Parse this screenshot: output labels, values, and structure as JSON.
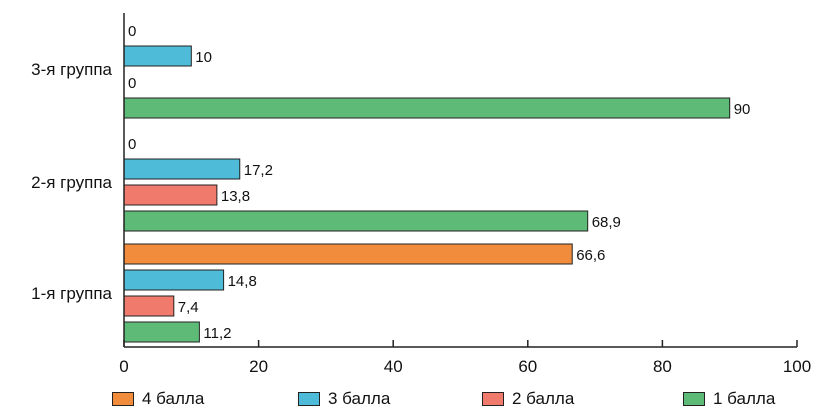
{
  "chart_data": {
    "type": "bar",
    "orientation": "horizontal",
    "categories": [
      "1-я группа",
      "2-я группа",
      "3-я группа"
    ],
    "series": [
      {
        "name": "1 балла",
        "color": "#5dbb77",
        "values": [
          11.2,
          68.9,
          90
        ]
      },
      {
        "name": "2 балла",
        "color": "#f07b6c",
        "values": [
          7.4,
          13.8,
          0
        ]
      },
      {
        "name": "3 балла",
        "color": "#4ebcd8",
        "values": [
          14.8,
          17.2,
          10
        ]
      },
      {
        "name": "4 балла",
        "color": "#f18c3c",
        "values": [
          66.6,
          0,
          0
        ]
      }
    ],
    "value_labels": [
      [
        "11,2",
        "68,9",
        "90"
      ],
      [
        "7,4",
        "13,8",
        "0"
      ],
      [
        "14,8",
        "17,2",
        "10"
      ],
      [
        "66,6",
        "0",
        "0"
      ]
    ],
    "xlim": [
      0,
      100
    ],
    "xticks": [
      0,
      20,
      40,
      60,
      80,
      100
    ],
    "xtick_labels": [
      "0",
      "20",
      "40",
      "60",
      "80",
      "100"
    ],
    "title": "",
    "xlabel": "",
    "ylabel": "",
    "grid": false,
    "legend_position": "bottom",
    "legend_order": [
      "4 балла",
      "3 балла",
      "2 балла",
      "1 балла"
    ]
  }
}
